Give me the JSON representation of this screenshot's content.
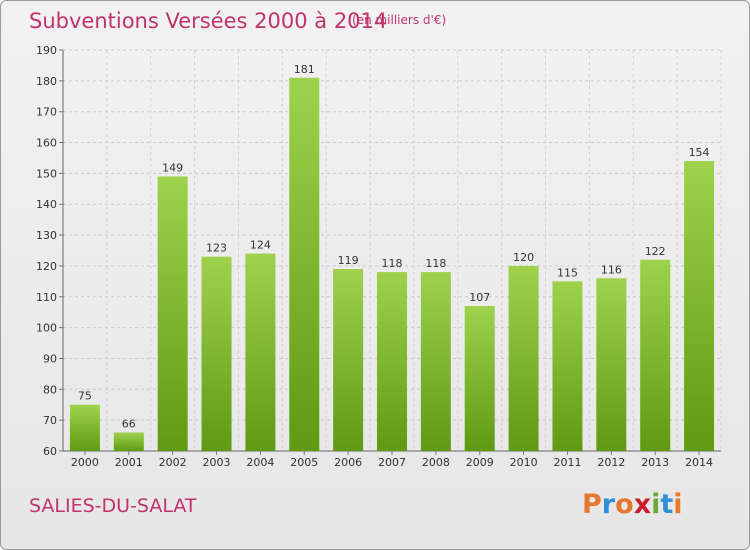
{
  "header": {
    "title": "Subventions Versées 2000 à 2014",
    "subtitle": "(en milliers d'€)"
  },
  "footer": {
    "commune": "SALIES-DU-SALAT",
    "logo_text": "Proxiti"
  },
  "colors": {
    "accent_text": "#c0336b",
    "bar_top": "#9fd24c",
    "bar_bottom": "#5f9a12",
    "logo": [
      "#e8772e",
      "#2f8fd6",
      "#e8772e",
      "#c81f2b",
      "#6aa83a",
      "#2f8fd6",
      "#e8772e"
    ]
  },
  "chart_data": {
    "type": "bar",
    "title": "Subventions Versées 2000 à 2014",
    "subtitle": "(en milliers d'€)",
    "xlabel": "",
    "ylabel": "",
    "categories": [
      "2000",
      "2001",
      "2002",
      "2003",
      "2004",
      "2005",
      "2006",
      "2007",
      "2008",
      "2009",
      "2010",
      "2011",
      "2012",
      "2013",
      "2014"
    ],
    "values": [
      75,
      66,
      149,
      123,
      124,
      181,
      119,
      118,
      118,
      107,
      120,
      115,
      116,
      122,
      154
    ],
    "ylim": [
      60,
      190
    ],
    "yticks": [
      60,
      70,
      80,
      90,
      100,
      110,
      120,
      130,
      140,
      150,
      160,
      170,
      180,
      190
    ],
    "grid": true,
    "legend": "none"
  }
}
